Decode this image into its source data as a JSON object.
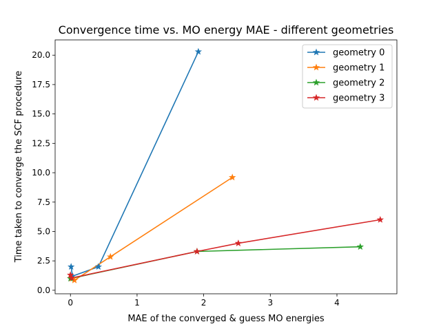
{
  "chart_data": {
    "type": "line",
    "title": "Convergence time vs. MO energy MAE - different geometries",
    "xlabel": "MAE of the converged & guess MO energies",
    "ylabel": "Time taken to converge the SCF procedure",
    "xlim": [
      -0.23,
      4.9
    ],
    "ylim": [
      -0.3,
      21.3
    ],
    "xticks": [
      0,
      1,
      2,
      3,
      4
    ],
    "xtick_labels": [
      "0",
      "1",
      "2",
      "3",
      "4"
    ],
    "yticks": [
      0,
      2.5,
      5,
      7.5,
      10,
      12.5,
      15,
      17.5,
      20
    ],
    "ytick_labels": [
      "0.0",
      "2.5",
      "5.0",
      "7.5",
      "10.0",
      "12.5",
      "15.0",
      "17.5",
      "20.0"
    ],
    "grid": false,
    "legend_position": "top-right",
    "marker": "star",
    "series": [
      {
        "name": "geometry 0",
        "color": "#1f77b4",
        "points": [
          [
            0.01,
            2.0
          ],
          [
            0.03,
            1.2
          ],
          [
            0.42,
            2.0
          ],
          [
            1.92,
            20.3
          ]
        ]
      },
      {
        "name": "geometry 1",
        "color": "#ff7f0e",
        "points": [
          [
            0.02,
            1.0
          ],
          [
            0.06,
            0.85
          ],
          [
            0.6,
            2.85
          ],
          [
            2.43,
            9.6
          ]
        ]
      },
      {
        "name": "geometry 2",
        "color": "#2ca02c",
        "points": [
          [
            0.0,
            1.0
          ],
          [
            1.9,
            3.3
          ],
          [
            4.35,
            3.7
          ]
        ]
      },
      {
        "name": "geometry 3",
        "color": "#d62728",
        "points": [
          [
            0.0,
            1.3
          ],
          [
            0.02,
            1.05
          ],
          [
            1.9,
            3.3
          ],
          [
            2.52,
            4.0
          ],
          [
            4.65,
            6.0
          ]
        ]
      }
    ]
  }
}
